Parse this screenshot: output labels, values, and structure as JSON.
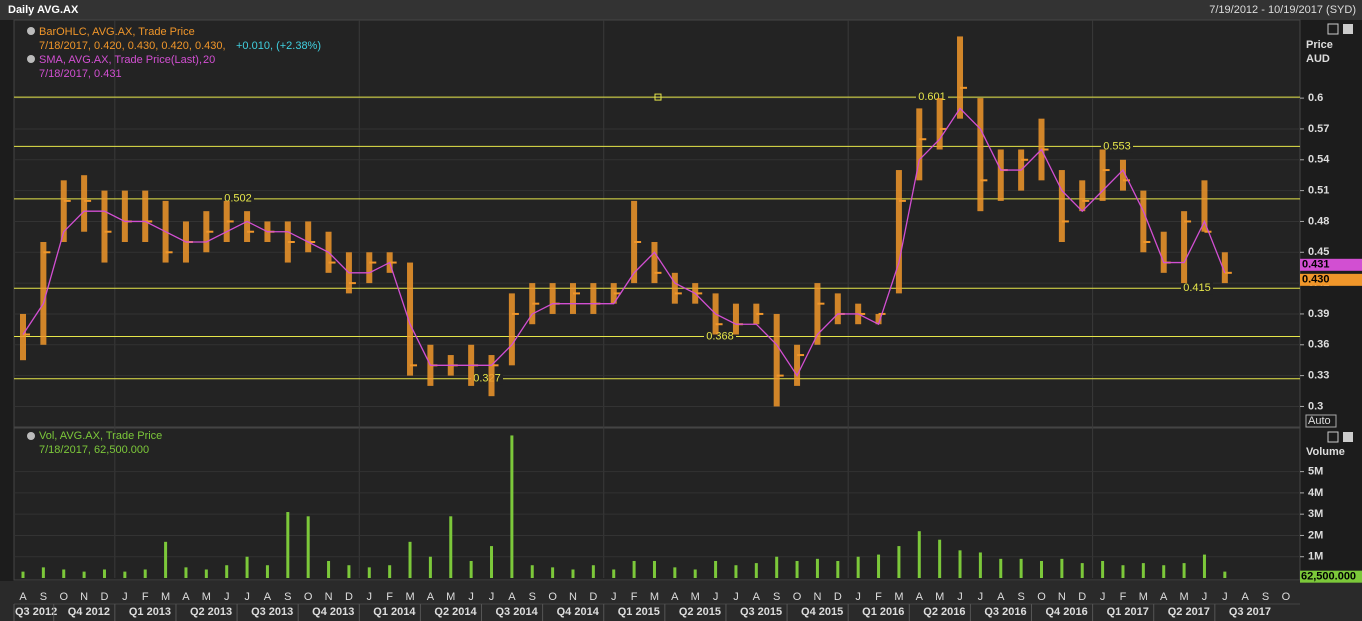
{
  "chart_data": [
    {
      "type": "ohlc",
      "title": "Daily AVG.AX",
      "subtitle": "7/19/2012 - 10/19/2017 (SYD)",
      "y_label": "Price",
      "y_unit": "AUD",
      "categories": [
        "A",
        "S",
        "O",
        "N",
        "D",
        "J",
        "F",
        "M",
        "A",
        "M",
        "J",
        "J",
        "A",
        "S",
        "O",
        "N",
        "D",
        "J",
        "F",
        "M",
        "A",
        "M",
        "J",
        "J",
        "A",
        "S",
        "O",
        "N",
        "D",
        "J",
        "F",
        "M",
        "A",
        "M",
        "J",
        "J",
        "A",
        "S",
        "O",
        "N",
        "D",
        "J",
        "F",
        "M",
        "A",
        "M",
        "J",
        "J",
        "A",
        "S",
        "O",
        "N",
        "D",
        "J",
        "F",
        "M",
        "A",
        "M",
        "J",
        "J",
        "A",
        "S",
        "O"
      ],
      "quarters": [
        "Q3 2012",
        "Q4 2012",
        "Q1 2013",
        "Q2 2013",
        "Q3 2013",
        "Q4 2013",
        "Q1 2014",
        "Q2 2014",
        "Q3 2014",
        "Q4 2014",
        "Q1 2015",
        "Q2 2015",
        "Q3 2015",
        "Q4 2015",
        "Q1 2016",
        "Q2 2016",
        "Q3 2016",
        "Q4 2016",
        "Q1 2017",
        "Q2 2017",
        "Q3 2017"
      ],
      "series": [
        {
          "name": "BarOHLC, AVG.AX, Trade Price",
          "color": "#f0962a",
          "info": "7/18/2017, 0.420, 0.430, 0.420, 0.430,",
          "change": "+0.010, (+2.38%)",
          "high": [
            0.39,
            0.46,
            0.52,
            0.525,
            0.51,
            0.51,
            0.51,
            0.5,
            0.48,
            0.49,
            0.5,
            0.49,
            0.48,
            0.48,
            0.48,
            0.47,
            0.45,
            0.45,
            0.45,
            0.44,
            0.36,
            0.35,
            0.36,
            0.35,
            0.41,
            0.42,
            0.42,
            0.42,
            0.42,
            0.42,
            0.5,
            0.46,
            0.43,
            0.42,
            0.41,
            0.4,
            0.4,
            0.39,
            0.36,
            0.42,
            0.41,
            0.4,
            0.39,
            0.53,
            0.59,
            0.6,
            0.66,
            0.6,
            0.55,
            0.55,
            0.58,
            0.53,
            0.52,
            0.55,
            0.54,
            0.51,
            0.47,
            0.49,
            0.52,
            0.45,
            null,
            null,
            null
          ],
          "low": [
            0.345,
            0.36,
            0.46,
            0.47,
            0.44,
            0.46,
            0.46,
            0.44,
            0.44,
            0.45,
            0.46,
            0.46,
            0.46,
            0.44,
            0.45,
            0.43,
            0.41,
            0.42,
            0.43,
            0.33,
            0.32,
            0.33,
            0.32,
            0.31,
            0.34,
            0.38,
            0.39,
            0.39,
            0.39,
            0.4,
            0.42,
            0.42,
            0.4,
            0.4,
            0.37,
            0.37,
            0.38,
            0.3,
            0.32,
            0.36,
            0.38,
            0.38,
            0.38,
            0.41,
            0.52,
            0.55,
            0.58,
            0.49,
            0.5,
            0.51,
            0.52,
            0.46,
            0.49,
            0.5,
            0.51,
            0.45,
            0.43,
            0.42,
            0.47,
            0.42,
            null,
            null,
            null
          ],
          "values": [
            0.37,
            0.45,
            0.5,
            0.5,
            0.47,
            0.48,
            0.48,
            0.45,
            0.46,
            0.47,
            0.48,
            0.47,
            0.47,
            0.46,
            0.46,
            0.44,
            0.42,
            0.44,
            0.44,
            0.34,
            0.34,
            0.34,
            0.34,
            0.34,
            0.39,
            0.4,
            0.4,
            0.41,
            0.4,
            0.41,
            0.46,
            0.43,
            0.41,
            0.41,
            0.38,
            0.38,
            0.39,
            0.33,
            0.35,
            0.4,
            0.39,
            0.39,
            0.39,
            0.5,
            0.56,
            0.57,
            0.61,
            0.52,
            0.53,
            0.54,
            0.55,
            0.48,
            0.5,
            0.53,
            0.52,
            0.46,
            0.44,
            0.48,
            0.47,
            0.43,
            null,
            null,
            null
          ]
        },
        {
          "name": "SMA, AVG.AX, Trade Price(Last),",
          "period": 20,
          "color": "#d24fd2",
          "info": "7/18/2017, 0.431",
          "values": [
            0.37,
            0.4,
            0.47,
            0.49,
            0.49,
            0.48,
            0.48,
            0.47,
            0.46,
            0.46,
            0.47,
            0.48,
            0.47,
            0.47,
            0.46,
            0.45,
            0.43,
            0.43,
            0.44,
            0.38,
            0.34,
            0.34,
            0.34,
            0.34,
            0.36,
            0.39,
            0.4,
            0.4,
            0.4,
            0.4,
            0.43,
            0.45,
            0.42,
            0.41,
            0.39,
            0.38,
            0.38,
            0.36,
            0.33,
            0.37,
            0.39,
            0.39,
            0.38,
            0.44,
            0.54,
            0.56,
            0.59,
            0.57,
            0.53,
            0.53,
            0.55,
            0.51,
            0.49,
            0.51,
            0.53,
            0.49,
            0.44,
            0.44,
            0.48,
            0.43,
            null,
            null,
            null
          ]
        }
      ],
      "levels": [
        0.601,
        0.553,
        0.502,
        0.415,
        0.368,
        0.327
      ],
      "level_color": "#e6e64a",
      "badges": [
        0.431,
        {
          "value": 0.43,
          "label": "0.430"
        }
      ],
      "button": "Auto",
      "ylim": [
        0.28,
        0.676
      ],
      "yticks": [
        0.3,
        0.33,
        0.36,
        0.39,
        0.42,
        0.45,
        0.48,
        0.51,
        0.54,
        0.57,
        0.6
      ],
      "grid": true
    },
    {
      "type": "bar",
      "name": "Vol, AVG.AX, Trade Price",
      "info": "7/18/2017, 62,500.000",
      "y_label": "Volume",
      "color": "#7cc83a",
      "values": [
        300000,
        500000,
        400000,
        300000,
        400000,
        300000,
        400000,
        1700000,
        500000,
        400000,
        600000,
        1000000,
        600000,
        3100000,
        2900000,
        800000,
        600000,
        500000,
        600000,
        1700000,
        1000000,
        2900000,
        800000,
        1500000,
        6700000,
        600000,
        500000,
        400000,
        600000,
        400000,
        800000,
        800000,
        500000,
        400000,
        800000,
        600000,
        700000,
        1000000,
        800000,
        900000,
        800000,
        1000000,
        1100000,
        1500000,
        2200000,
        1800000,
        1300000,
        1200000,
        900000,
        900000,
        800000,
        900000,
        700000,
        800000,
        600000,
        700000,
        600000,
        700000,
        1100000,
        300000,
        null,
        null,
        null
      ],
      "badge": {
        "value": 62500,
        "label": "62,500.000"
      },
      "ylim": [
        0,
        7050000
      ],
      "yticks": [
        {
          "value": 1000000,
          "label": "1M"
        },
        {
          "value": 2000000,
          "label": "2M"
        },
        {
          "value": 3000000,
          "label": "3M"
        },
        {
          "value": 4000000,
          "label": "4M"
        },
        {
          "value": 5000000,
          "label": "5M"
        }
      ],
      "grid": true
    }
  ]
}
